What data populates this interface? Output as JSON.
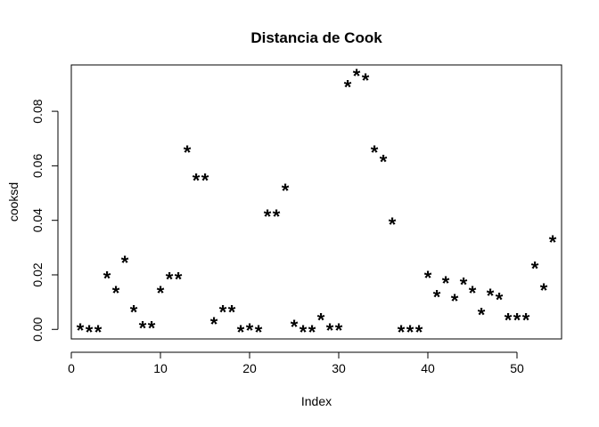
{
  "chart_data": {
    "type": "scatter",
    "title": "Distancia de Cook",
    "xlabel": "Index",
    "ylabel": "cooksd",
    "marker": "*",
    "xlim": [
      0,
      55
    ],
    "ylim": [
      -0.0035,
      0.097
    ],
    "xticks": [
      0,
      10,
      20,
      30,
      40,
      50
    ],
    "yticks": [
      0.0,
      0.02,
      0.04,
      0.06,
      0.08
    ],
    "ytick_labels": [
      "0.00",
      "0.02",
      "0.04",
      "0.06",
      "0.08"
    ],
    "grid": false,
    "x": [
      1,
      2,
      3,
      4,
      5,
      6,
      7,
      8,
      9,
      10,
      11,
      12,
      13,
      14,
      15,
      16,
      17,
      18,
      19,
      20,
      21,
      22,
      23,
      24,
      25,
      26,
      27,
      28,
      29,
      30,
      31,
      32,
      33,
      34,
      35,
      36,
      37,
      38,
      39,
      40,
      41,
      42,
      43,
      44,
      45,
      46,
      47,
      48,
      49,
      50,
      51,
      52,
      53,
      54
    ],
    "y": [
      0.0008,
      0.0001,
      0.0001,
      0.0198,
      0.0145,
      0.0255,
      0.0075,
      0.0015,
      0.0015,
      0.0145,
      0.0195,
      0.0195,
      0.066,
      0.0557,
      0.0557,
      0.003,
      0.0075,
      0.0075,
      0.0001,
      0.0008,
      0.0001,
      0.0425,
      0.0425,
      0.052,
      0.002,
      0.0001,
      0.0001,
      0.0045,
      0.0008,
      0.0008,
      0.09,
      0.094,
      0.0925,
      0.066,
      0.0625,
      0.0395,
      0.0001,
      0.0001,
      0.0001,
      0.02,
      0.013,
      0.018,
      0.0115,
      0.0175,
      0.0145,
      0.0065,
      0.0135,
      0.012,
      0.0045,
      0.0045,
      0.0045,
      0.0235,
      0.0155,
      0.033
    ]
  }
}
